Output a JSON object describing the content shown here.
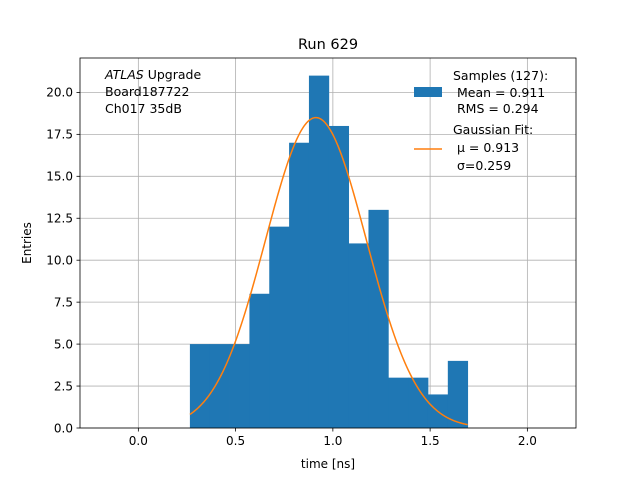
{
  "chart_data": {
    "type": "bar",
    "title": "Run 629",
    "xlabel": "time [ns]",
    "ylabel": "Entries",
    "xlim": [
      -0.3,
      2.25
    ],
    "ylim": [
      0,
      22.05
    ],
    "grid": true,
    "xticks": [
      0.0,
      0.5,
      1.0,
      1.5,
      2.0
    ],
    "xtick_labels": [
      "0.0",
      "0.5",
      "1.0",
      "1.5",
      "2.0"
    ],
    "yticks": [
      0.0,
      2.5,
      5.0,
      7.5,
      10.0,
      12.5,
      15.0,
      17.5,
      20.0
    ],
    "ytick_labels": [
      "0.0",
      "2.5",
      "5.0",
      "7.5",
      "10.0",
      "12.5",
      "15.0",
      "17.5",
      "20.0"
    ],
    "annotation": {
      "atlas": "ATLAS",
      "upgrade": " Upgrade",
      "board": " Board187722",
      "channel": " Ch017 35dB"
    },
    "series": [
      {
        "kind": "histogram",
        "color": "#1f77b4",
        "bin_edges": [
          0.265,
          0.367,
          0.469,
          0.571,
          0.673,
          0.775,
          0.877,
          0.979,
          1.081,
          1.183,
          1.285,
          1.387,
          1.489,
          1.591,
          1.693
        ],
        "values": [
          5,
          5,
          5,
          8,
          12,
          17,
          21,
          18,
          11,
          13,
          3,
          3,
          2,
          4
        ]
      },
      {
        "kind": "line",
        "color": "#ff7f0e",
        "fit": {
          "amplitude": 18.5,
          "mu": 0.913,
          "sigma": 0.259,
          "x_start": 0.265,
          "x_end": 1.693
        }
      }
    ],
    "legend": {
      "placement": "top-right",
      "entries": [
        {
          "kind": "patch",
          "color": "#1f77b4",
          "lines": [
            "Samples (127):",
            " Mean = 0.911",
            " RMS = 0.294"
          ]
        },
        {
          "kind": "line",
          "color": "#ff7f0e",
          "lines": [
            "Gaussian Fit:",
            " μ = 0.913",
            " σ=0.259"
          ]
        }
      ]
    }
  }
}
